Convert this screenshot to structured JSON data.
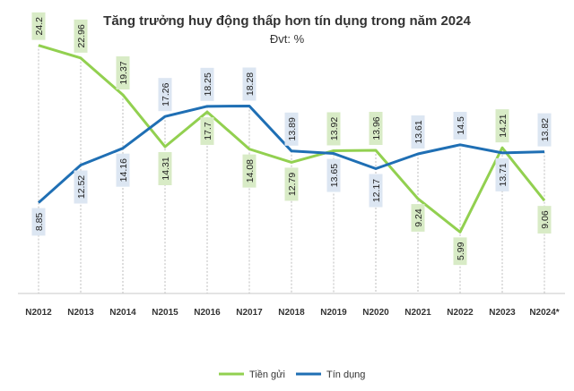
{
  "chart_data": {
    "type": "line",
    "title": "Tăng trưởng huy động thấp hơn tín dụng trong năm 2024",
    "subtitle": "Đvt: %",
    "categories": [
      "N2012",
      "N2013",
      "N2014",
      "N2015",
      "N2016",
      "N2017",
      "N2018",
      "N2019",
      "N2020",
      "N2021",
      "N2022",
      "N2023",
      "N2024*"
    ],
    "series": [
      {
        "name": "Tiền gửi",
        "color": "#92D050",
        "label_bg": "#D8EBC6",
        "values": [
          24.2,
          22.96,
          19.37,
          14.31,
          17.7,
          14.08,
          12.79,
          13.92,
          13.96,
          9.24,
          5.99,
          14.21,
          9.06
        ],
        "label_text": [
          "24.2",
          "22.96",
          "19.37",
          "14.31",
          "17.7",
          "14.08",
          "12.79",
          "13.92",
          "13.96",
          "9.24",
          "5.99",
          "14.21",
          "9.06"
        ]
      },
      {
        "name": "Tín dụng",
        "color": "#1F6FB4",
        "label_bg": "#DCE6F2",
        "values": [
          8.85,
          12.52,
          14.16,
          17.26,
          18.25,
          18.28,
          13.89,
          13.65,
          12.17,
          13.61,
          14.5,
          13.71,
          13.82
        ],
        "label_text": [
          "8.85",
          "12.52",
          "14.16",
          "17.26",
          "18.25",
          "18.28",
          "13.89",
          "13.65",
          "12.17",
          "13.61",
          "14.5",
          "13.71",
          "13.82"
        ]
      }
    ],
    "ylim": [
      0,
      26
    ],
    "xlabel": "",
    "ylabel": "",
    "grid": false,
    "vertical_dashed_guides": true,
    "legend_position": "bottom"
  }
}
